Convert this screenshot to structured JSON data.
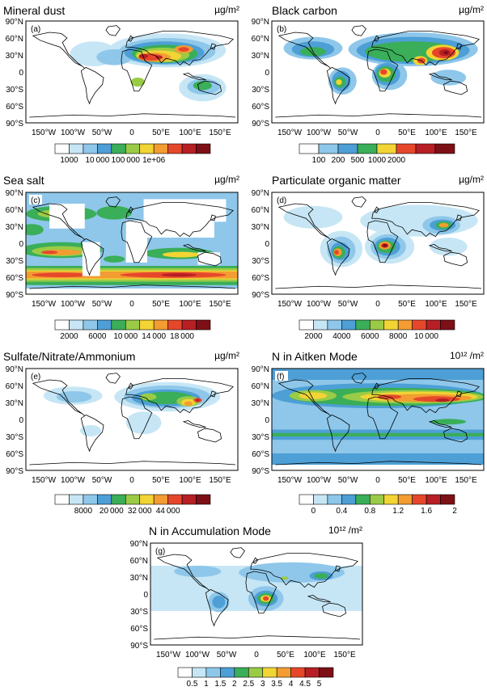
{
  "lat_labels": [
    "90°N",
    "60°N",
    "30°N",
    "0",
    "30°S",
    "60°S",
    "90°S"
  ],
  "lon_labels": [
    "150°W",
    "100°W",
    "50°W",
    "0",
    "50°E",
    "100°E",
    "150°E"
  ],
  "panels": [
    {
      "id": "a",
      "letter": "(a)",
      "title": "Mineral dust",
      "unit": "µg/m²",
      "colors": [
        "#ffffff",
        "#c6e6f5",
        "#8ec7ea",
        "#4d9fd6",
        "#3aae58",
        "#9acb46",
        "#f2d434",
        "#f29c32",
        "#e6472b",
        "#b71f24",
        "#7d1016"
      ],
      "tick_labels": [
        "1000",
        "10 000",
        "100 000",
        "1e+06"
      ],
      "tick_positions": [
        1,
        3,
        5,
        7
      ]
    },
    {
      "id": "b",
      "letter": "(b)",
      "title": "Black carbon",
      "unit": "µg/m²",
      "colors": [
        "#ffffff",
        "#8ec7ea",
        "#4d9fd6",
        "#3aae58",
        "#f2d434",
        "#e6472b",
        "#b71f24",
        "#7d1016"
      ],
      "tick_labels": [
        "100",
        "200",
        "500",
        "1000",
        "2000"
      ],
      "tick_positions": [
        1,
        2,
        3,
        4,
        5
      ]
    },
    {
      "id": "c",
      "letter": "(c)",
      "title": "Sea salt",
      "unit": "µg/m²",
      "colors": [
        "#ffffff",
        "#c6e6f5",
        "#8ec7ea",
        "#4d9fd6",
        "#3aae58",
        "#9acb46",
        "#f2d434",
        "#f29c32",
        "#e6472b",
        "#b71f24",
        "#7d1016"
      ],
      "tick_labels": [
        "2000",
        "6000",
        "10 000",
        "14 000",
        "18 000"
      ],
      "tick_positions": [
        1,
        3,
        5,
        7,
        9
      ]
    },
    {
      "id": "d",
      "letter": "(d)",
      "title": "Particulate organic matter",
      "unit": "µg/m²",
      "colors": [
        "#ffffff",
        "#c6e6f5",
        "#8ec7ea",
        "#4d9fd6",
        "#3aae58",
        "#9acb46",
        "#f2d434",
        "#f29c32",
        "#e6472b",
        "#b71f24",
        "#7d1016"
      ],
      "tick_labels": [
        "2000",
        "4000",
        "6000",
        "8000",
        "10 000"
      ],
      "tick_positions": [
        1,
        3,
        5,
        7,
        9
      ]
    },
    {
      "id": "e",
      "letter": "(e)",
      "title": "Sulfate/Nitrate/Ammonium",
      "unit": "µg/m²",
      "colors": [
        "#ffffff",
        "#c6e6f5",
        "#8ec7ea",
        "#4d9fd6",
        "#3aae58",
        "#9acb46",
        "#f2d434",
        "#f29c32",
        "#e6472b",
        "#b71f24",
        "#7d1016"
      ],
      "tick_labels": [
        "8000",
        "20 000",
        "32 000",
        "44 000"
      ],
      "tick_positions": [
        2,
        4,
        6,
        8
      ]
    },
    {
      "id": "f",
      "letter": "(f)",
      "title": "N in Aitken Mode",
      "unit": "10¹² /m²",
      "colors": [
        "#ffffff",
        "#c6e6f5",
        "#8ec7ea",
        "#4d9fd6",
        "#3aae58",
        "#9acb46",
        "#f2d434",
        "#f29c32",
        "#e6472b",
        "#b71f24",
        "#7d1016"
      ],
      "tick_labels": [
        "0",
        "0.4",
        "0.8",
        "1.2",
        "1.6",
        "2"
      ],
      "tick_positions": [
        1,
        3,
        5,
        7,
        9,
        11
      ]
    },
    {
      "id": "g",
      "letter": "(g)",
      "title": "N in Accumulation Mode",
      "unit": "10¹² /m²",
      "colors": [
        "#ffffff",
        "#c6e6f5",
        "#8ec7ea",
        "#4d9fd6",
        "#3aae58",
        "#9acb46",
        "#f2d434",
        "#f29c32",
        "#e6472b",
        "#b71f24",
        "#7d1016"
      ],
      "tick_labels": [
        "0.5",
        "1",
        "1.5",
        "2",
        "2.5",
        "3",
        "3.5",
        "4",
        "4.5",
        "5"
      ],
      "tick_positions": [
        1,
        2,
        3,
        4,
        5,
        6,
        7,
        8,
        9,
        10
      ]
    }
  ]
}
